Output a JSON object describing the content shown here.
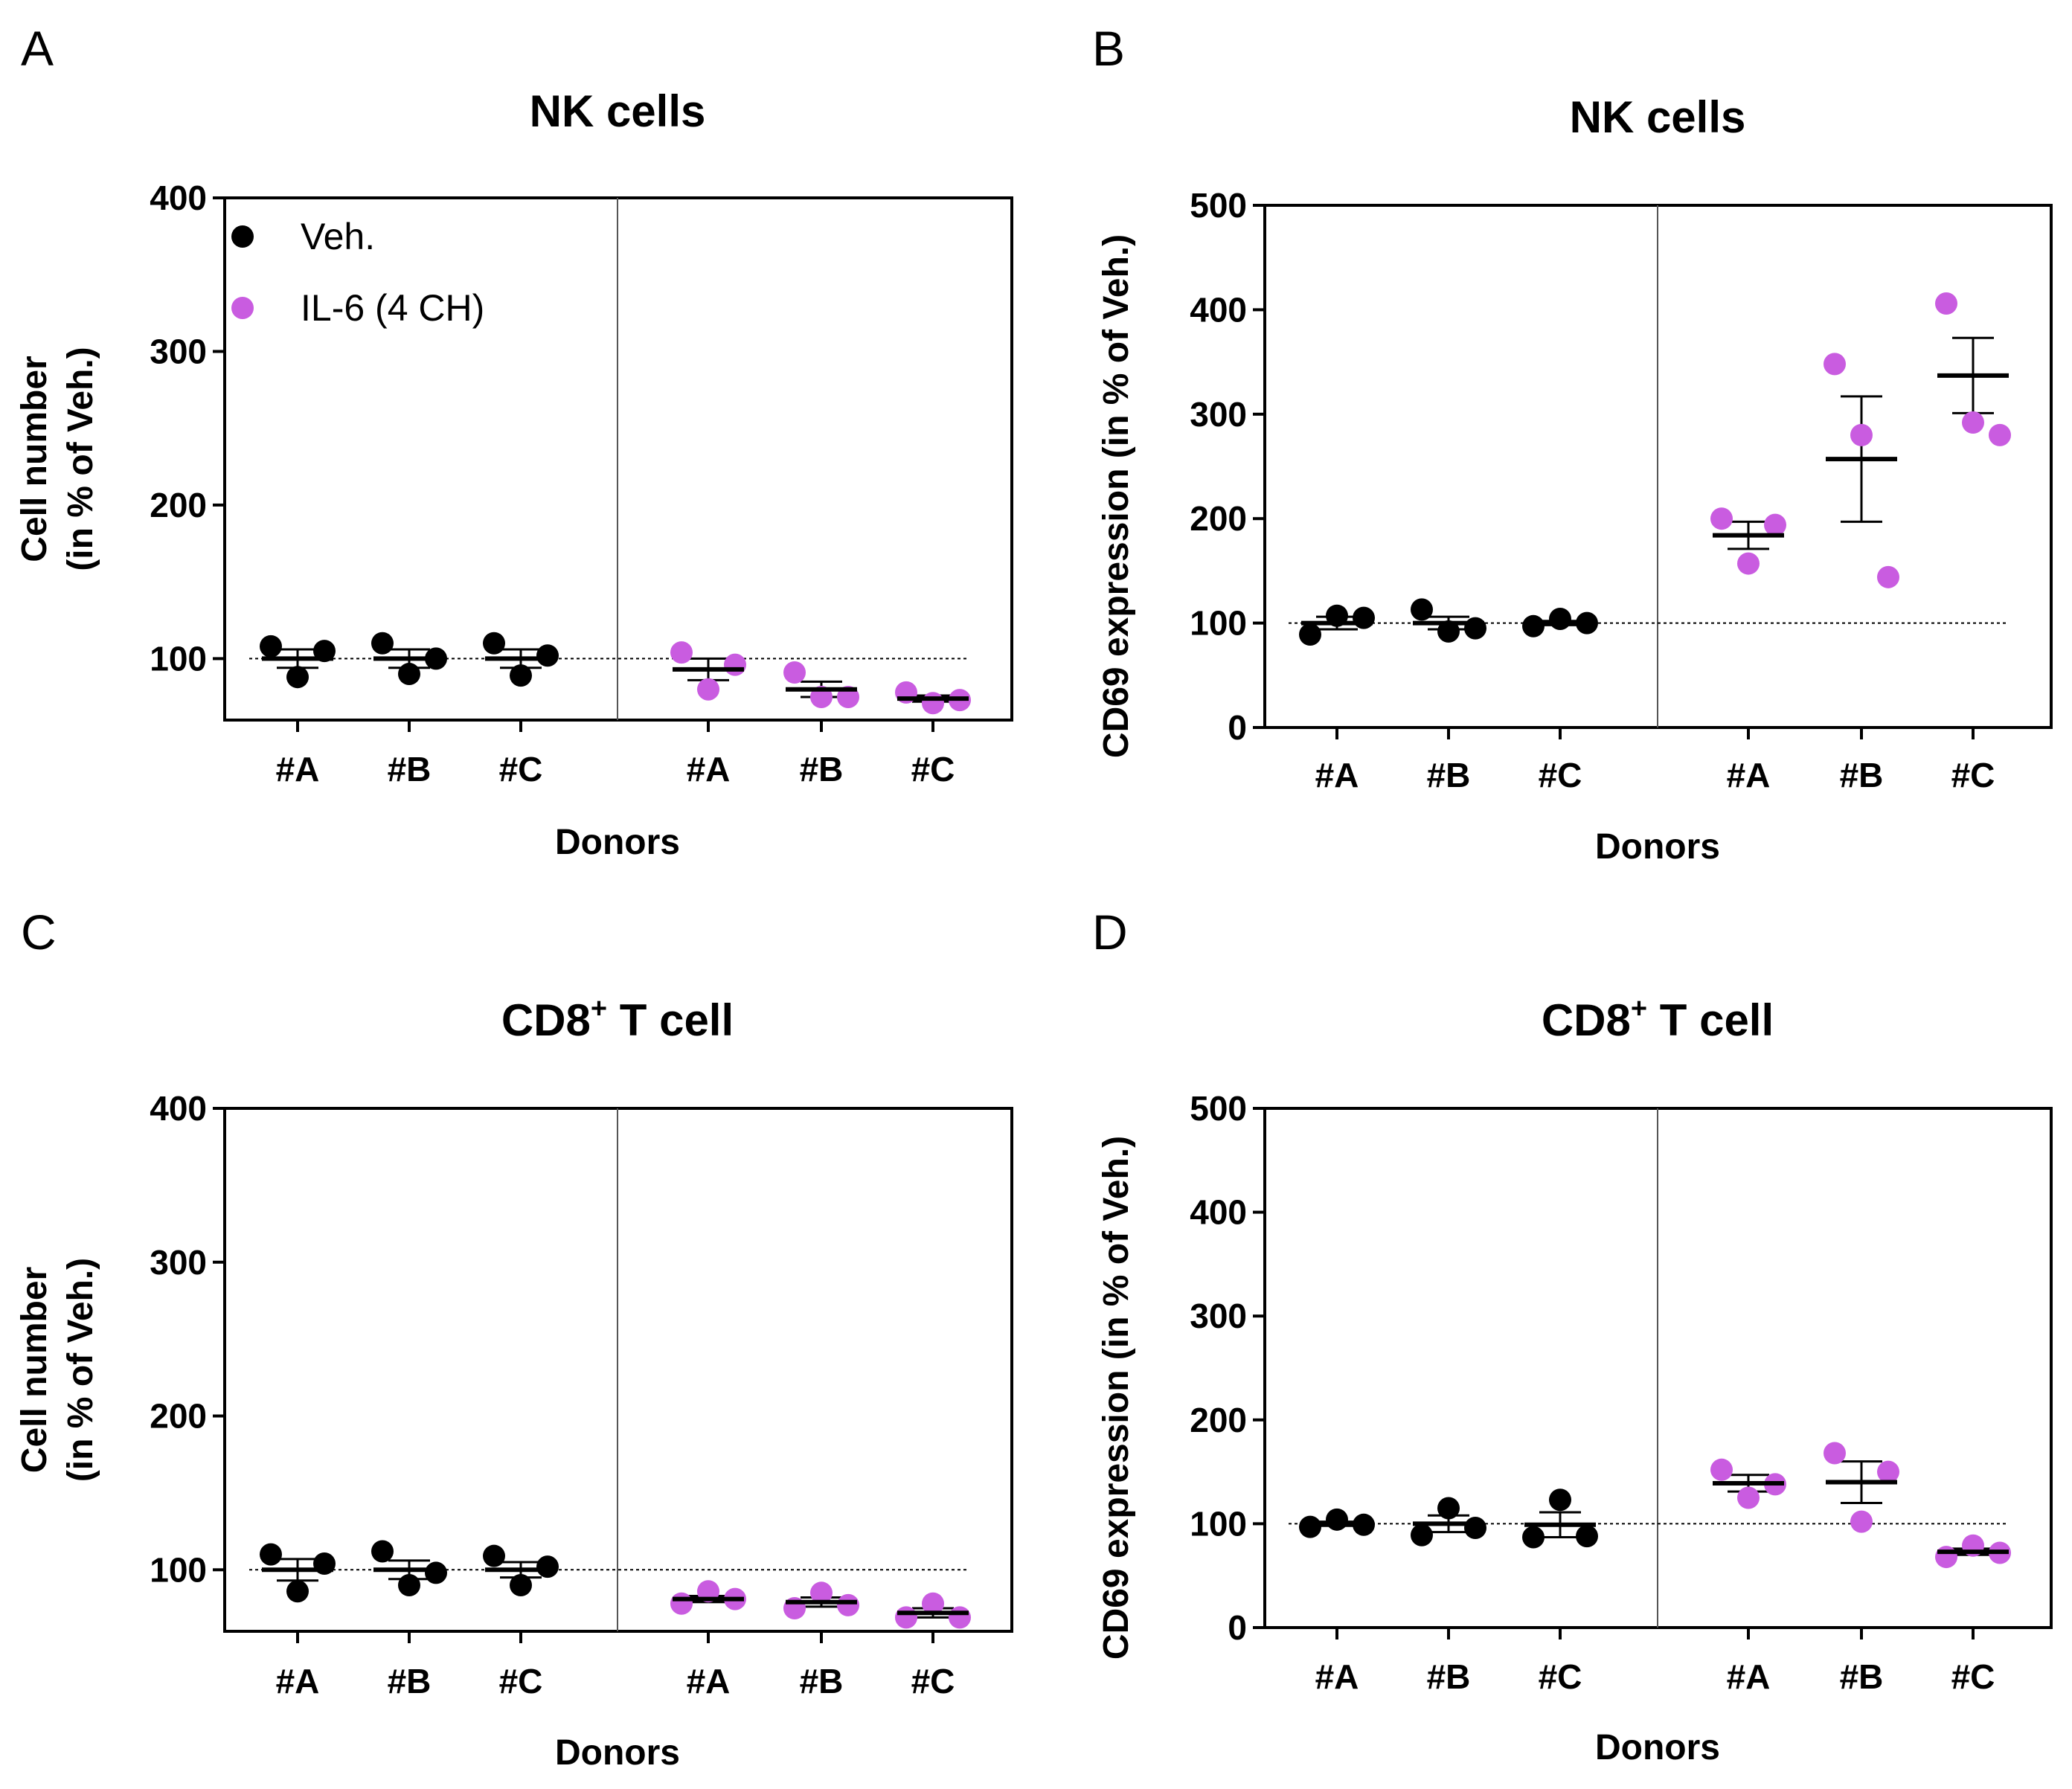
{
  "legend": [
    {
      "label": "Veh.",
      "color": "#000000"
    },
    {
      "label": "IL-6 (4 CH)",
      "color": "#c95ce0"
    }
  ],
  "chart_data": [
    {
      "panel": "A",
      "type": "scatter",
      "title": "NK cells",
      "title_sup": "",
      "xlabel": "Donors",
      "ylabel_line1": "Cell number",
      "ylabel_line2": "(in % of Veh.)",
      "ylim": [
        60,
        400
      ],
      "yticks": [
        100,
        200,
        300,
        400
      ],
      "reference_line": 100,
      "show_legend": true,
      "groups": [
        {
          "series": "Veh.",
          "color": "#000000",
          "categories": [
            {
              "label": "#A",
              "points": [
                108,
                88,
                105
              ],
              "mean": 100,
              "sem": 6
            },
            {
              "label": "#B",
              "points": [
                110,
                90,
                100
              ],
              "mean": 100,
              "sem": 6
            },
            {
              "label": "#C",
              "points": [
                110,
                89,
                102
              ],
              "mean": 100,
              "sem": 6
            }
          ]
        },
        {
          "series": "IL-6 (4 CH)",
          "color": "#c95ce0",
          "categories": [
            {
              "label": "#A",
              "points": [
                104,
                80,
                96
              ],
              "mean": 93,
              "sem": 7
            },
            {
              "label": "#B",
              "points": [
                91,
                75,
                75
              ],
              "mean": 80,
              "sem": 5
            },
            {
              "label": "#C",
              "points": [
                78,
                71,
                73
              ],
              "mean": 74,
              "sem": 2
            }
          ]
        }
      ]
    },
    {
      "panel": "B",
      "type": "scatter",
      "title": "NK cells",
      "title_sup": "",
      "xlabel": "Donors",
      "ylabel_line1": "CD69 expression (in % of Veh.)",
      "ylabel_line2": "",
      "ylim": [
        0,
        500
      ],
      "yticks": [
        0,
        100,
        200,
        300,
        400,
        500
      ],
      "reference_line": 100,
      "show_legend": false,
      "groups": [
        {
          "series": "Veh.",
          "color": "#000000",
          "categories": [
            {
              "label": "#A",
              "points": [
                89,
                107,
                105
              ],
              "mean": 100,
              "sem": 6
            },
            {
              "label": "#B",
              "points": [
                113,
                92,
                95
              ],
              "mean": 100,
              "sem": 6
            },
            {
              "label": "#C",
              "points": [
                97,
                104,
                100
              ],
              "mean": 100,
              "sem": 2
            }
          ]
        },
        {
          "series": "IL-6 (4 CH)",
          "color": "#c95ce0",
          "categories": [
            {
              "label": "#A",
              "points": [
                200,
                157,
                194
              ],
              "mean": 184,
              "sem": 13
            },
            {
              "label": "#B",
              "points": [
                348,
                280,
                144
              ],
              "mean": 257,
              "sem": 60
            },
            {
              "label": "#C",
              "points": [
                406,
                292,
                280
              ],
              "mean": 337,
              "sem": 36
            }
          ]
        }
      ]
    },
    {
      "panel": "C",
      "type": "scatter",
      "title": "CD8",
      "title_sup": "+",
      "title_rest": " T cell",
      "xlabel": "Donors",
      "ylabel_line1": "Cell number",
      "ylabel_line2": "(in % of Veh.)",
      "ylim": [
        60,
        400
      ],
      "yticks": [
        100,
        200,
        300,
        400
      ],
      "reference_line": 100,
      "show_legend": false,
      "groups": [
        {
          "series": "Veh.",
          "color": "#000000",
          "categories": [
            {
              "label": "#A",
              "points": [
                110,
                86,
                104
              ],
              "mean": 100,
              "sem": 7
            },
            {
              "label": "#B",
              "points": [
                112,
                90,
                98
              ],
              "mean": 100,
              "sem": 6
            },
            {
              "label": "#C",
              "points": [
                109,
                90,
                102
              ],
              "mean": 100,
              "sem": 5
            }
          ]
        },
        {
          "series": "IL-6 (4 CH)",
          "color": "#c95ce0",
          "categories": [
            {
              "label": "#A",
              "points": [
                78,
                86,
                81
              ],
              "mean": 81,
              "sem": 2
            },
            {
              "label": "#B",
              "points": [
                75,
                85,
                77
              ],
              "mean": 79,
              "sem": 3
            },
            {
              "label": "#C",
              "points": [
                69,
                78,
                69
              ],
              "mean": 72,
              "sem": 3
            }
          ]
        }
      ]
    },
    {
      "panel": "D",
      "type": "scatter",
      "title": "CD8",
      "title_sup": "+",
      "title_rest": " T cell",
      "xlabel": "Donors",
      "ylabel_line1": "CD69 expression (in % of Veh.)",
      "ylabel_line2": "",
      "ylim": [
        0,
        500
      ],
      "yticks": [
        0,
        100,
        200,
        300,
        400,
        500
      ],
      "reference_line": 100,
      "show_legend": false,
      "groups": [
        {
          "series": "Veh.",
          "color": "#000000",
          "categories": [
            {
              "label": "#A",
              "points": [
                97,
                104,
                99
              ],
              "mean": 100,
              "sem": 2
            },
            {
              "label": "#B",
              "points": [
                89,
                115,
                96
              ],
              "mean": 100,
              "sem": 8
            },
            {
              "label": "#C",
              "points": [
                87,
                123,
                88
              ],
              "mean": 99,
              "sem": 12
            }
          ]
        },
        {
          "series": "IL-6 (4 CH)",
          "color": "#c95ce0",
          "categories": [
            {
              "label": "#A",
              "points": [
                152,
                125,
                138
              ],
              "mean": 139,
              "sem": 8
            },
            {
              "label": "#B",
              "points": [
                168,
                102,
                150
              ],
              "mean": 140,
              "sem": 20
            },
            {
              "label": "#C",
              "points": [
                68,
                79,
                72
              ],
              "mean": 73,
              "sem": 3
            }
          ]
        }
      ]
    }
  ]
}
